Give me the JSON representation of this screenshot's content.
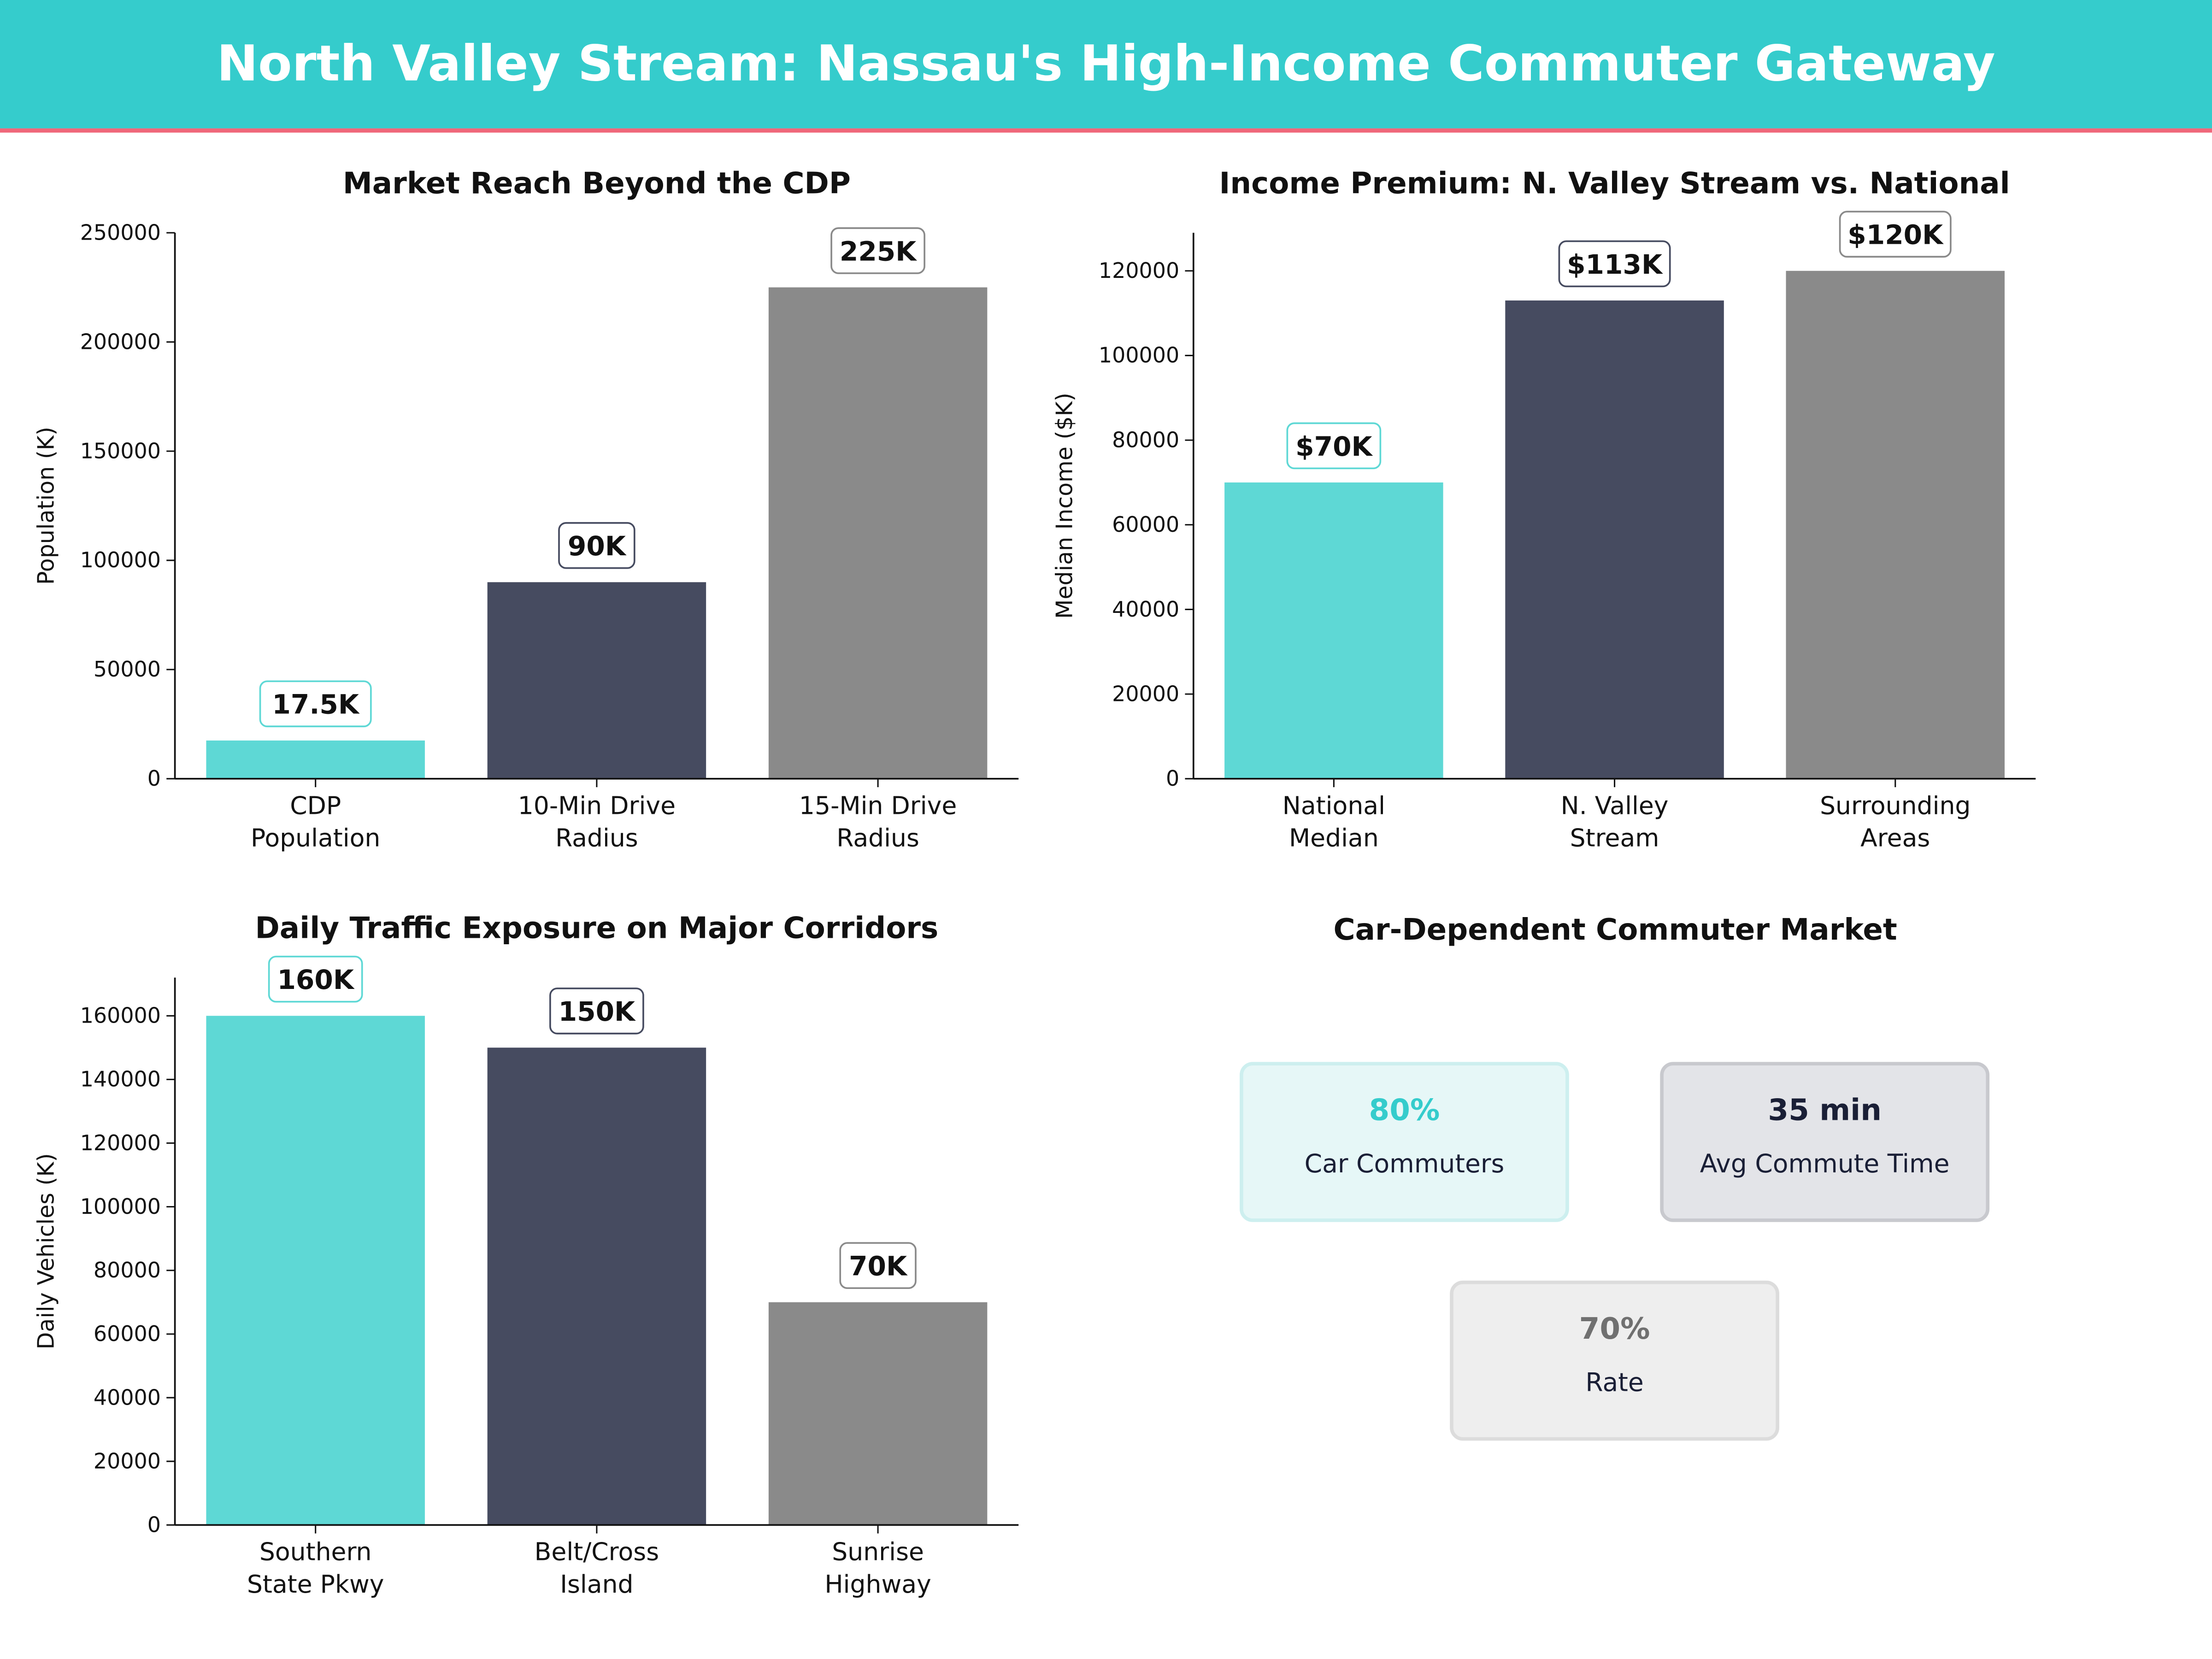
{
  "header": {
    "title": "North Valley Stream: Nassau's High-Income Commuter Gateway",
    "bg_color": "#35CCCC",
    "accent_line_color": "#F0677A"
  },
  "chart_data": [
    {
      "type": "bar",
      "title": "Market Reach Beyond the CDP",
      "ylabel": "Population (K)",
      "xlabel": "",
      "categories": [
        [
          "CDP",
          "Population"
        ],
        [
          "10-Min Drive",
          "Radius"
        ],
        [
          "15-Min Drive",
          "Radius"
        ]
      ],
      "values": [
        17500,
        90000,
        225000
      ],
      "data_labels": [
        "17.5K",
        "90K",
        "225K"
      ],
      "colors": [
        "#5ED8D5",
        "#464B60",
        "#8A8A8A"
      ],
      "ylim": [
        0,
        250000
      ],
      "yticks": [
        0,
        50000,
        100000,
        150000,
        200000,
        250000
      ],
      "grid": false
    },
    {
      "type": "bar",
      "title": "Income Premium: N. Valley Stream vs. National",
      "ylabel": "Median Income ($K)",
      "xlabel": "",
      "categories": [
        [
          "National",
          "Median"
        ],
        [
          "N. Valley",
          "Stream"
        ],
        [
          "Surrounding",
          "Areas"
        ]
      ],
      "values": [
        70000,
        113000,
        120000
      ],
      "data_labels": [
        "$70K",
        "$113K",
        "$120K"
      ],
      "colors": [
        "#5ED8D5",
        "#464B60",
        "#8A8A8A"
      ],
      "ylim": [
        0,
        129000
      ],
      "yticks": [
        0,
        20000,
        40000,
        60000,
        80000,
        100000,
        120000
      ],
      "grid": false
    },
    {
      "type": "bar",
      "title": "Daily Traffic Exposure on Major Corridors",
      "ylabel": "Daily Vehicles (K)",
      "xlabel": "",
      "categories": [
        [
          "Southern",
          "State Pkwy"
        ],
        [
          "Belt/Cross",
          "Island"
        ],
        [
          "Sunrise",
          "Highway"
        ]
      ],
      "values": [
        160000,
        150000,
        70000
      ],
      "data_labels": [
        "160K",
        "150K",
        "70K"
      ],
      "colors": [
        "#5ED8D5",
        "#464B60",
        "#8A8A8A"
      ],
      "ylim": [
        0,
        172000
      ],
      "yticks": [
        0,
        20000,
        40000,
        60000,
        80000,
        100000,
        120000,
        140000,
        160000
      ],
      "grid": false
    }
  ],
  "kpi_panel": {
    "title": "Car-Dependent Commuter Market",
    "cards": [
      {
        "value": "80%",
        "label": "Car Commuters",
        "value_color": "#35CCCC",
        "bg": "#E6F7F7",
        "border": "#CDEFEF"
      },
      {
        "value": "35 min",
        "label": "Avg Commute Time",
        "value_color": "#1A1F36",
        "bg": "#E3E4E8",
        "border": "#C8C9CE"
      },
      {
        "value": "70%",
        "label": "Rate",
        "value_color": "#707070",
        "bg": "#EEEEEE",
        "border": "#DCDCDC"
      }
    ]
  }
}
